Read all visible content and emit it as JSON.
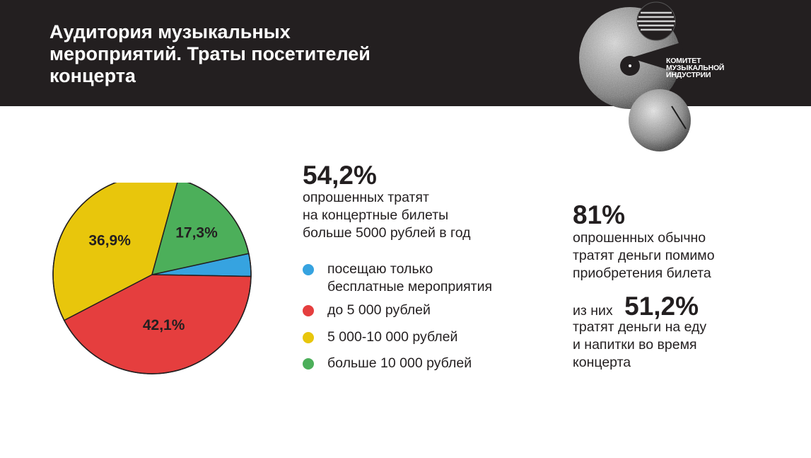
{
  "header": {
    "title": "Аудитория музыкальных мероприятий. Траты посетителей концерта",
    "background": "#231f20"
  },
  "logo": {
    "lines": [
      "КОМИТЕТ",
      "МУЗЫКАЛЬНОЙ",
      "ИНДУСТРИИ"
    ],
    "icon": "grain-circles-logo-icon"
  },
  "chart_data": {
    "type": "pie",
    "categories": [
      "посещаю только бесплатные мероприятия",
      "до 5 000 рублей",
      "5 000-10 000 рублей",
      "больше 10 000 рублей"
    ],
    "values": [
      3.7,
      42.1,
      36.9,
      17.3
    ],
    "labels": [
      "",
      "42,1%",
      "36,9%",
      "17,3%"
    ],
    "colors": [
      "#36a3e0",
      "#e53e3e",
      "#e8c60c",
      "#4caf5a"
    ],
    "legend_position": "right"
  },
  "legend": [
    {
      "lines": [
        "посещаю только",
        "бесплатные мероприятия"
      ],
      "color": "#36a3e0"
    },
    {
      "lines": [
        "до 5 000 рублей"
      ],
      "color": "#e53e3e"
    },
    {
      "lines": [
        "5 000-10 000 рублей"
      ],
      "color": "#e8c60c"
    },
    {
      "lines": [
        "больше 10 000 рублей"
      ],
      "color": "#4caf5a"
    }
  ],
  "stat1": {
    "value": "54,2%",
    "lines": [
      "опрошенных тратят",
      "на концертные билеты",
      "больше 5000 рублей в год"
    ]
  },
  "stat2": {
    "value": "81%",
    "lines": [
      "опрошенных обычно",
      "тратят деньги помимо",
      "приобретения билета"
    ]
  },
  "stat3": {
    "prefix": "из них",
    "value": "51,2%",
    "lines": [
      "тратят деньги на еду",
      "и напитки во время",
      "концерта"
    ]
  }
}
